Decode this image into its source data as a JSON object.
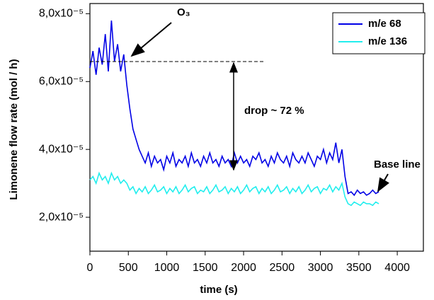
{
  "chart_data": {
    "type": "line",
    "x_label": "time (s)",
    "y_label": "Limonene flow rate (mol / h)",
    "x": [
      0,
      40,
      80,
      120,
      160,
      200,
      240,
      280,
      320,
      360,
      400,
      440,
      480,
      520,
      560,
      600,
      640,
      680,
      720,
      760,
      800,
      840,
      880,
      920,
      960,
      1000,
      1040,
      1080,
      1120,
      1160,
      1200,
      1240,
      1280,
      1320,
      1360,
      1400,
      1440,
      1480,
      1520,
      1560,
      1600,
      1640,
      1680,
      1720,
      1760,
      1800,
      1840,
      1880,
      1920,
      1960,
      2000,
      2040,
      2080,
      2120,
      2160,
      2200,
      2240,
      2280,
      2320,
      2360,
      2400,
      2440,
      2480,
      2520,
      2560,
      2600,
      2640,
      2680,
      2720,
      2760,
      2800,
      2840,
      2880,
      2920,
      2960,
      3000,
      3040,
      3080,
      3120,
      3160,
      3200,
      3240,
      3280,
      3320,
      3360,
      3400,
      3440,
      3480,
      3520,
      3560,
      3600,
      3640,
      3680,
      3720,
      3760
    ],
    "series": [
      {
        "name": "m/e 68",
        "color": "#0000e6",
        "values": [
          6.4e-05,
          6.9e-05,
          6.2e-05,
          7e-05,
          6.5e-05,
          7.4e-05,
          6.3e-05,
          7.8e-05,
          6.6e-05,
          7.1e-05,
          6.3e-05,
          6.8e-05,
          5.9e-05,
          5.2e-05,
          4.6e-05,
          4.3e-05,
          4e-05,
          3.8e-05,
          3.6e-05,
          3.9e-05,
          3.5e-05,
          3.8e-05,
          3.6e-05,
          3.7e-05,
          3.4e-05,
          3.8e-05,
          3.6e-05,
          3.9e-05,
          3.5e-05,
          3.7e-05,
          3.6e-05,
          3.8e-05,
          3.5e-05,
          3.9e-05,
          3.6e-05,
          3.7e-05,
          3.5e-05,
          3.8e-05,
          3.6e-05,
          3.9e-05,
          3.6e-05,
          3.7e-05,
          3.5e-05,
          3.8e-05,
          3.6e-05,
          3.7e-05,
          3.5e-05,
          3.9e-05,
          3.6e-05,
          3.8e-05,
          3.6e-05,
          3.7e-05,
          3.5e-05,
          3.8e-05,
          3.7e-05,
          3.9e-05,
          3.6e-05,
          3.7e-05,
          3.5e-05,
          3.8e-05,
          3.6e-05,
          3.9e-05,
          3.7e-05,
          3.6e-05,
          3.8e-05,
          3.5e-05,
          3.9e-05,
          3.7e-05,
          3.6e-05,
          3.8e-05,
          3.6e-05,
          3.9e-05,
          3.7e-05,
          3.5e-05,
          3.8e-05,
          3.7e-05,
          4e-05,
          3.6e-05,
          3.9e-05,
          3.7e-05,
          4.2e-05,
          3.6e-05,
          4e-05,
          3.2e-05,
          2.7e-05,
          2.75e-05,
          2.65e-05,
          2.8e-05,
          2.7e-05,
          2.75e-05,
          2.65e-05,
          2.7e-05,
          2.8e-05,
          2.7e-05,
          2.75e-05
        ]
      },
      {
        "name": "m/e 136",
        "color": "#22eeee",
        "values": [
          3.1e-05,
          3.2e-05,
          3e-05,
          3.3e-05,
          3.1e-05,
          3.2e-05,
          3e-05,
          3.3e-05,
          3.1e-05,
          3.2e-05,
          3e-05,
          3.1e-05,
          3e-05,
          2.8e-05,
          2.9e-05,
          2.7e-05,
          2.85e-05,
          2.75e-05,
          2.9e-05,
          2.7e-05,
          2.8e-05,
          2.95e-05,
          2.75e-05,
          2.8e-05,
          2.9e-05,
          2.7e-05,
          2.85e-05,
          2.75e-05,
          2.9e-05,
          2.7e-05,
          2.8e-05,
          2.95e-05,
          2.75e-05,
          2.85e-05,
          2.9e-05,
          2.7e-05,
          2.8e-05,
          2.75e-05,
          2.9e-05,
          2.7e-05,
          2.8e-05,
          2.95e-05,
          2.75e-05,
          2.8e-05,
          2.9e-05,
          2.7e-05,
          2.85e-05,
          2.75e-05,
          2.9e-05,
          2.7e-05,
          2.8e-05,
          2.95e-05,
          2.75e-05,
          2.85e-05,
          2.9e-05,
          2.7e-05,
          2.85e-05,
          2.75e-05,
          2.9e-05,
          2.7e-05,
          2.8e-05,
          2.95e-05,
          2.75e-05,
          2.8e-05,
          2.9e-05,
          2.7e-05,
          2.85e-05,
          2.75e-05,
          2.9e-05,
          2.7e-05,
          2.8e-05,
          2.95e-05,
          2.75e-05,
          2.85e-05,
          2.9e-05,
          2.7e-05,
          2.85e-05,
          2.8e-05,
          2.95e-05,
          2.75e-05,
          2.9e-05,
          2.8e-05,
          3e-05,
          2.6e-05,
          2.4e-05,
          2.35e-05,
          2.45e-05,
          2.4e-05,
          2.35e-05,
          2.45e-05,
          2.4e-05,
          2.4e-05,
          2.35e-05,
          2.45e-05,
          2.4e-05
        ]
      }
    ],
    "xlim": [
      0,
      4340
    ],
    "xticks": [
      0,
      500,
      1000,
      1500,
      2000,
      2500,
      3000,
      3500,
      4000
    ],
    "ylim": [
      1e-05,
      8.3e-05
    ],
    "yticks": [
      {
        "value": 2e-05,
        "label": "2,0x10⁻⁵"
      },
      {
        "value": 4e-05,
        "label": "4,0x10⁻⁵"
      },
      {
        "value": 6e-05,
        "label": "6,0x10⁻⁵"
      },
      {
        "value": 8e-05,
        "label": "8,0x10⁻⁵"
      }
    ],
    "annotations": [
      "O₃",
      "drop ~ 72 %",
      "Base line"
    ],
    "legend": "top-right"
  }
}
